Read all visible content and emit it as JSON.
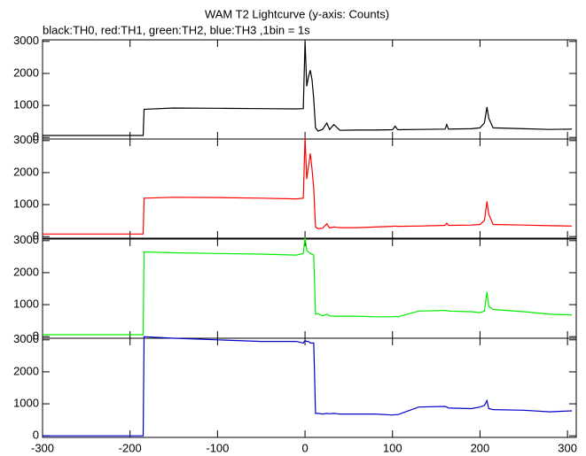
{
  "header": {
    "title": "WAM T2 Lightcurve (y-axis: Counts)",
    "subtitle": "black:TH0, red:TH1, green:TH2, blue:TH3 ,1bin = 1s"
  },
  "chart_data": [
    {
      "type": "line",
      "xlim": [
        -300,
        310
      ],
      "ylim": [
        -50,
        3050
      ],
      "yticks": [
        0,
        1000,
        2000,
        3000
      ],
      "xticks": [
        -300,
        -200,
        -100,
        0,
        100,
        200,
        300
      ],
      "xtick_labels": false,
      "x": [
        -300,
        -250,
        -200,
        -185,
        -184,
        -150,
        -100,
        -50,
        -10,
        -2,
        0,
        2,
        4,
        6,
        8,
        10,
        12,
        15,
        20,
        25,
        28,
        33,
        40,
        60,
        80,
        100,
        103,
        106,
        130,
        160,
        162,
        164,
        190,
        200,
        205,
        208,
        210,
        215,
        250,
        280,
        305
      ],
      "series": [
        {
          "color": "#000000",
          "values": [
            60,
            60,
            60,
            60,
            880,
            920,
            910,
            900,
            890,
            900,
            3000,
            1600,
            1900,
            2100,
            1800,
            1200,
            300,
            200,
            250,
            450,
            250,
            400,
            220,
            230,
            230,
            240,
            350,
            240,
            250,
            260,
            400,
            260,
            270,
            300,
            450,
            950,
            600,
            300,
            270,
            250,
            260
          ]
        }
      ]
    },
    {
      "type": "line",
      "xlim": [
        -300,
        310
      ],
      "ylim": [
        -50,
        3050
      ],
      "yticks": [
        0,
        1000,
        2000,
        3000
      ],
      "xticks": [
        -300,
        -200,
        -100,
        0,
        100,
        200,
        300
      ],
      "xtick_labels": false,
      "x": [
        -300,
        -250,
        -200,
        -185,
        -184,
        -150,
        -100,
        -50,
        -10,
        -2,
        0,
        2,
        4,
        6,
        8,
        10,
        12,
        15,
        20,
        25,
        28,
        33,
        40,
        60,
        80,
        100,
        103,
        106,
        130,
        160,
        162,
        164,
        190,
        200,
        205,
        208,
        210,
        215,
        250,
        280,
        305
      ],
      "series": [
        {
          "color": "#ff0000",
          "values": [
            80,
            80,
            80,
            80,
            1200,
            1230,
            1220,
            1200,
            1180,
            1200,
            3100,
            1800,
            2200,
            2600,
            2100,
            1500,
            300,
            250,
            260,
            400,
            270,
            300,
            280,
            280,
            300,
            320,
            330,
            320,
            330,
            350,
            420,
            350,
            360,
            380,
            500,
            1100,
            700,
            380,
            360,
            340,
            330
          ]
        }
      ]
    },
    {
      "type": "line",
      "xlim": [
        -300,
        310
      ],
      "ylim": [
        -50,
        3050
      ],
      "yticks": [
        0,
        1000,
        2000,
        3000
      ],
      "xticks": [
        -300,
        -200,
        -100,
        0,
        100,
        200,
        300
      ],
      "xtick_labels": false,
      "x": [
        -300,
        -250,
        -200,
        -185,
        -184,
        -150,
        -100,
        -50,
        -10,
        -2,
        0,
        2,
        4,
        6,
        8,
        10,
        12,
        15,
        20,
        25,
        28,
        33,
        40,
        60,
        80,
        100,
        103,
        106,
        130,
        160,
        162,
        164,
        190,
        200,
        205,
        208,
        210,
        215,
        250,
        280,
        305
      ],
      "series": [
        {
          "color": "#00ee00",
          "values": [
            60,
            60,
            60,
            60,
            2650,
            2620,
            2600,
            2580,
            2550,
            2600,
            3100,
            2700,
            2650,
            2600,
            2580,
            2550,
            700,
            720,
            650,
            700,
            650,
            640,
            640,
            640,
            620,
            620,
            630,
            620,
            800,
            820,
            820,
            800,
            780,
            750,
            800,
            1400,
            950,
            850,
            780,
            700,
            680
          ]
        }
      ]
    },
    {
      "type": "line",
      "xlim": [
        -300,
        310
      ],
      "ylim": [
        -50,
        3050
      ],
      "yticks": [
        0,
        1000,
        2000,
        3000
      ],
      "xticks": [
        -300,
        -200,
        -100,
        0,
        100,
        200,
        300
      ],
      "xtick_labels": true,
      "x": [
        -300,
        -250,
        -200,
        -185,
        -184,
        -150,
        -100,
        -50,
        -10,
        -2,
        0,
        2,
        4,
        6,
        8,
        10,
        12,
        15,
        20,
        25,
        28,
        33,
        40,
        60,
        80,
        100,
        103,
        106,
        130,
        160,
        162,
        164,
        190,
        200,
        205,
        208,
        210,
        215,
        250,
        280,
        305
      ],
      "series": [
        {
          "color": "#0000cc",
          "values": [
            0,
            0,
            0,
            0,
            3100,
            3050,
            3000,
            2950,
            2950,
            2900,
            2980,
            2950,
            2950,
            2900,
            2900,
            2900,
            700,
            700,
            680,
            700,
            690,
            700,
            680,
            680,
            680,
            650,
            660,
            660,
            900,
            920,
            900,
            870,
            850,
            900,
            950,
            1100,
            850,
            820,
            800,
            750,
            780
          ]
        }
      ]
    }
  ]
}
